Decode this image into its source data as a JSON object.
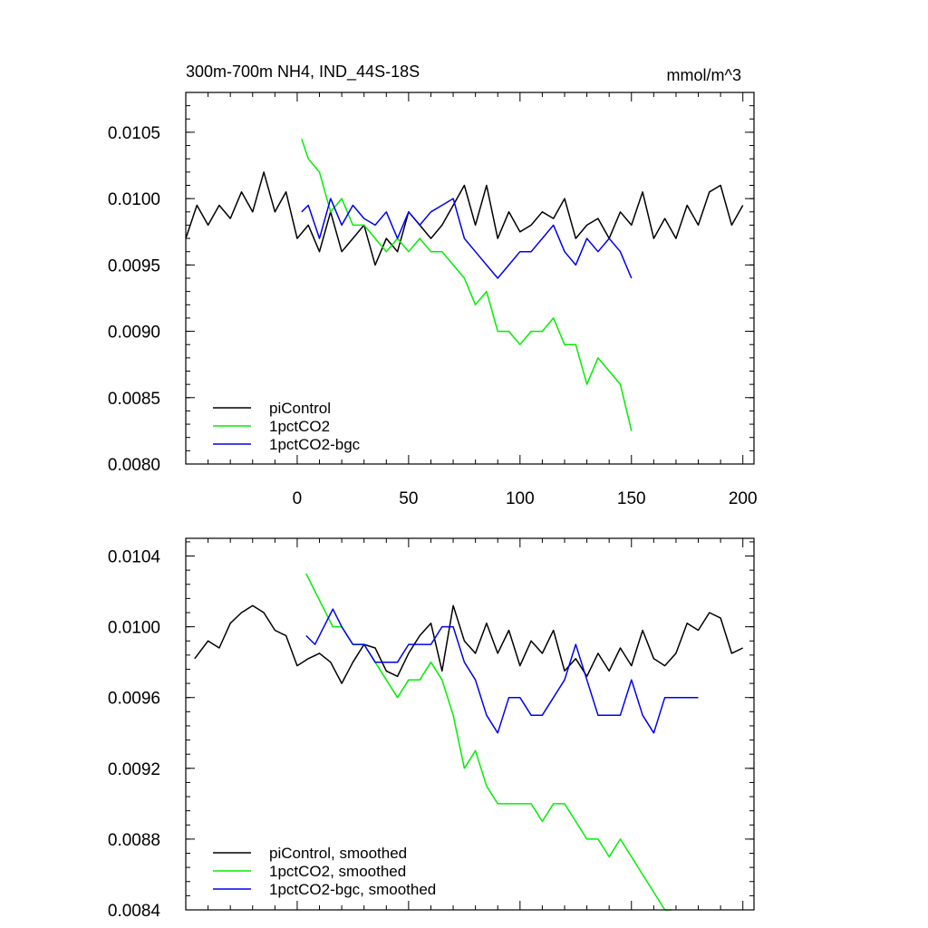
{
  "chart_data": [
    {
      "type": "line",
      "title": "300m-700m NH4, IND_44S-18S",
      "units": "mmol/m^3",
      "xlim": [
        -50,
        205
      ],
      "ylim": [
        0.008,
        0.0108
      ],
      "xticks": [
        0,
        50,
        100,
        150,
        200
      ],
      "xtick_labels": [
        "0",
        "50",
        "100",
        "150",
        "200"
      ],
      "yticks": [
        0.008,
        0.0085,
        0.009,
        0.0095,
        0.01,
        0.0105
      ],
      "ytick_labels": [
        "0.0080",
        "0.0085",
        "0.0090",
        "0.0095",
        "0.0100",
        "0.0105"
      ],
      "legend_position": "bottom-left",
      "series": [
        {
          "name": "piControl",
          "color": "#000000",
          "x": [
            -50,
            -45,
            -40,
            -35,
            -30,
            -25,
            -20,
            -15,
            -10,
            -5,
            0,
            5,
            10,
            15,
            20,
            25,
            30,
            35,
            40,
            45,
            50,
            55,
            60,
            65,
            70,
            75,
            80,
            85,
            90,
            95,
            100,
            105,
            110,
            115,
            120,
            125,
            130,
            135,
            140,
            145,
            150,
            155,
            160,
            165,
            170,
            175,
            180,
            185,
            190,
            195,
            200
          ],
          "values": [
            0.0097,
            0.00995,
            0.0098,
            0.00995,
            0.00985,
            0.01005,
            0.0099,
            0.0102,
            0.0099,
            0.01005,
            0.0097,
            0.0098,
            0.0096,
            0.0099,
            0.0096,
            0.0097,
            0.0098,
            0.0095,
            0.0097,
            0.0096,
            0.0099,
            0.0098,
            0.0097,
            0.0098,
            0.00995,
            0.0101,
            0.0098,
            0.0101,
            0.0097,
            0.0099,
            0.00975,
            0.0098,
            0.0099,
            0.00985,
            0.01,
            0.0097,
            0.0098,
            0.00985,
            0.0097,
            0.0099,
            0.0098,
            0.01005,
            0.0097,
            0.00985,
            0.0097,
            0.00995,
            0.0098,
            0.01005,
            0.0101,
            0.0098,
            0.00995
          ]
        },
        {
          "name": "1pctCO2",
          "color": "#00ee00",
          "x": [
            2,
            5,
            10,
            15,
            20,
            25,
            30,
            35,
            40,
            45,
            50,
            55,
            60,
            65,
            70,
            75,
            80,
            85,
            90,
            95,
            100,
            105,
            110,
            115,
            120,
            125,
            130,
            135,
            140,
            145,
            150
          ],
          "values": [
            0.01045,
            0.0103,
            0.0102,
            0.0099,
            0.01,
            0.0098,
            0.0098,
            0.0097,
            0.0096,
            0.0097,
            0.0096,
            0.0097,
            0.0096,
            0.0096,
            0.0095,
            0.0094,
            0.0092,
            0.0093,
            0.009,
            0.009,
            0.0089,
            0.009,
            0.009,
            0.0091,
            0.0089,
            0.0089,
            0.0086,
            0.0088,
            0.0087,
            0.0086,
            0.00825
          ]
        },
        {
          "name": "1pctCO2-bgc",
          "color": "#0000ee",
          "x": [
            2,
            5,
            10,
            15,
            20,
            25,
            30,
            35,
            40,
            45,
            50,
            55,
            60,
            65,
            70,
            75,
            80,
            85,
            90,
            95,
            100,
            105,
            110,
            115,
            120,
            125,
            130,
            135,
            140,
            145,
            150
          ],
          "values": [
            0.0099,
            0.00995,
            0.0097,
            0.01,
            0.0098,
            0.00995,
            0.00985,
            0.0098,
            0.0099,
            0.0097,
            0.0099,
            0.0098,
            0.0099,
            0.00995,
            0.01,
            0.0097,
            0.0096,
            0.0095,
            0.0094,
            0.0095,
            0.0096,
            0.0096,
            0.0097,
            0.0098,
            0.0096,
            0.0095,
            0.0097,
            0.0096,
            0.0097,
            0.0096,
            0.0094
          ]
        }
      ]
    },
    {
      "type": "line",
      "title": "",
      "xlim": [
        -50,
        205
      ],
      "ylim": [
        0.0084,
        0.0105
      ],
      "xticks": [
        0,
        50,
        100,
        150,
        200
      ],
      "yticks": [
        0.0084,
        0.0088,
        0.0092,
        0.0096,
        0.01,
        0.0104
      ],
      "ytick_labels": [
        "0.0084",
        "0.0088",
        "0.0092",
        "0.0096",
        "0.0100",
        "0.0104"
      ],
      "legend_position": "bottom-left",
      "series": [
        {
          "name": "piControl, smoothed",
          "color": "#000000",
          "x": [
            -46,
            -40,
            -35,
            -30,
            -25,
            -20,
            -15,
            -10,
            -5,
            0,
            5,
            10,
            15,
            20,
            25,
            30,
            35,
            40,
            45,
            50,
            55,
            60,
            65,
            70,
            75,
            80,
            85,
            90,
            95,
            100,
            105,
            110,
            115,
            120,
            125,
            130,
            135,
            140,
            145,
            150,
            155,
            160,
            165,
            170,
            175,
            180,
            185,
            190,
            195,
            200
          ],
          "values": [
            0.00982,
            0.00992,
            0.00988,
            0.01002,
            0.01008,
            0.01012,
            0.01008,
            0.00998,
            0.00995,
            0.00978,
            0.00982,
            0.00985,
            0.0098,
            0.00968,
            0.0098,
            0.0099,
            0.00988,
            0.00975,
            0.00972,
            0.00985,
            0.00995,
            0.01002,
            0.00975,
            0.01012,
            0.00992,
            0.00985,
            0.01002,
            0.00985,
            0.00998,
            0.00978,
            0.00992,
            0.00985,
            0.00998,
            0.00975,
            0.00982,
            0.00972,
            0.00985,
            0.00975,
            0.00988,
            0.00978,
            0.00998,
            0.00982,
            0.00978,
            0.00985,
            0.01002,
            0.00998,
            0.01008,
            0.01005,
            0.00985,
            0.00988
          ]
        },
        {
          "name": "1pctCO2, smoothed",
          "color": "#00ee00",
          "x": [
            4,
            8,
            12,
            16,
            20,
            25,
            30,
            35,
            40,
            45,
            50,
            55,
            60,
            65,
            70,
            75,
            80,
            85,
            90,
            95,
            100,
            105,
            110,
            115,
            120,
            125,
            130,
            135,
            140,
            145,
            150,
            155,
            160,
            165,
            168
          ],
          "values": [
            0.0103,
            0.0102,
            0.0101,
            0.01,
            0.01,
            0.0099,
            0.0099,
            0.0098,
            0.0097,
            0.0096,
            0.0097,
            0.0097,
            0.0098,
            0.0097,
            0.0095,
            0.0092,
            0.0093,
            0.0091,
            0.009,
            0.009,
            0.009,
            0.009,
            0.0089,
            0.009,
            0.009,
            0.0089,
            0.0088,
            0.0088,
            0.0087,
            0.0088,
            0.0087,
            0.0086,
            0.0085,
            0.0084,
            0.0084
          ]
        },
        {
          "name": "1pctCO2-bgc, smoothed",
          "color": "#0000ee",
          "x": [
            4,
            8,
            12,
            16,
            20,
            25,
            30,
            35,
            40,
            45,
            50,
            55,
            60,
            65,
            70,
            75,
            80,
            85,
            90,
            95,
            100,
            105,
            110,
            115,
            120,
            125,
            130,
            135,
            140,
            145,
            150,
            155,
            160,
            165,
            170,
            175,
            180
          ],
          "values": [
            0.00995,
            0.0099,
            0.01,
            0.0101,
            0.01,
            0.0099,
            0.0099,
            0.0098,
            0.0098,
            0.0098,
            0.0099,
            0.0099,
            0.0099,
            0.01,
            0.01,
            0.0098,
            0.0097,
            0.0095,
            0.0094,
            0.0096,
            0.0096,
            0.0095,
            0.0095,
            0.0096,
            0.0097,
            0.0099,
            0.0097,
            0.0095,
            0.0095,
            0.0095,
            0.0097,
            0.0095,
            0.0094,
            0.0096,
            0.0096,
            0.0096,
            0.0096
          ]
        }
      ]
    }
  ]
}
